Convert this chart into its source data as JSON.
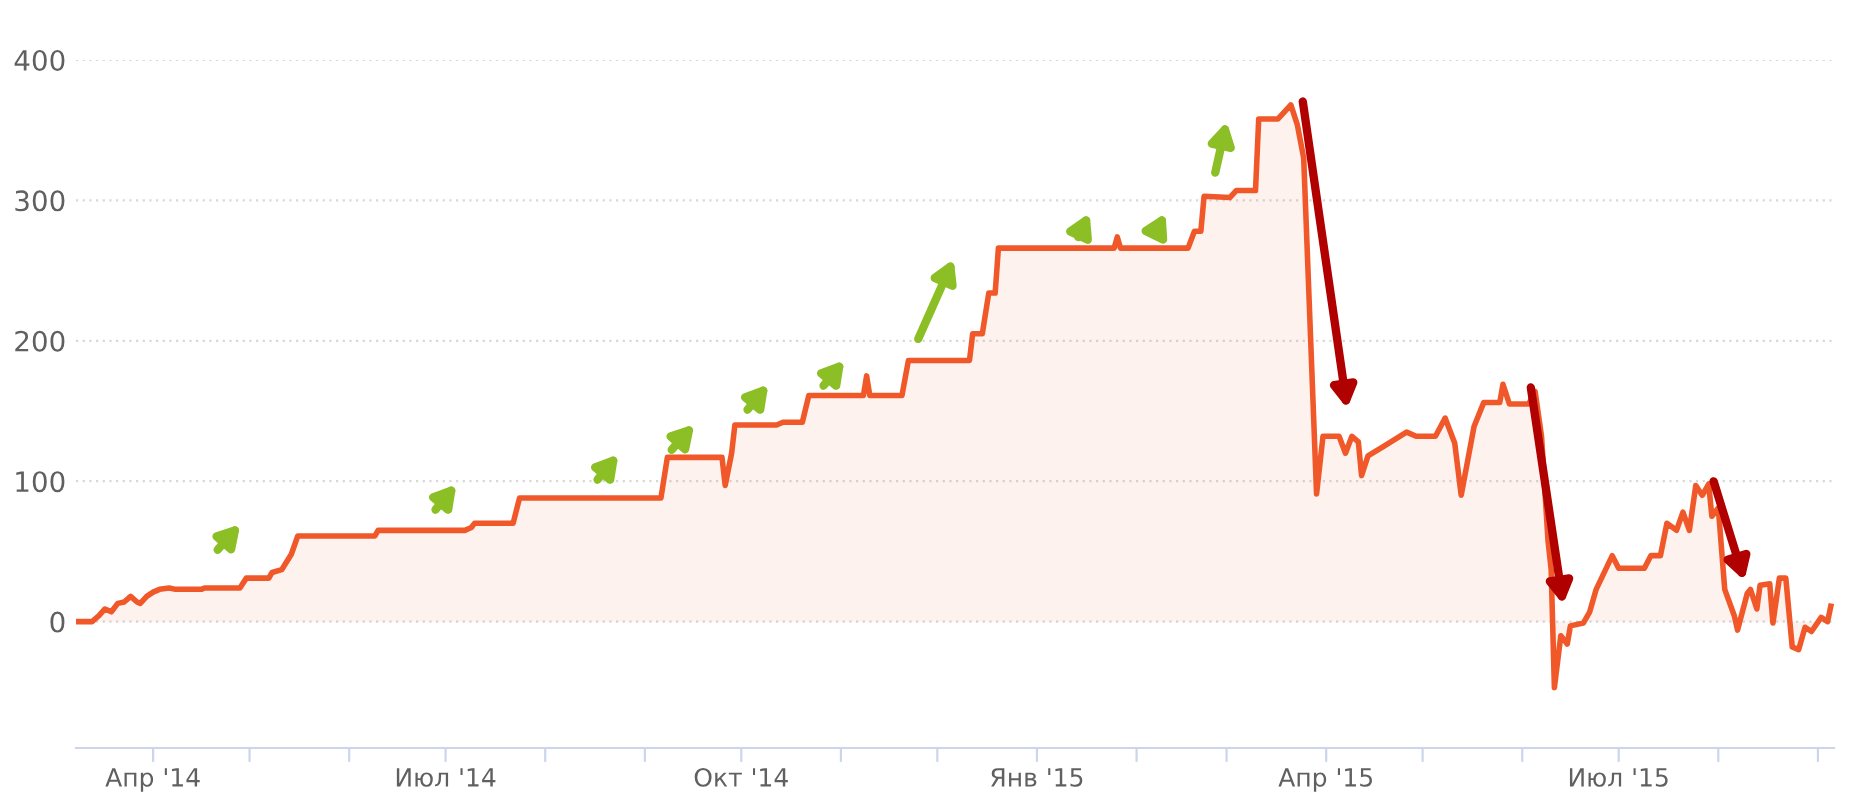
{
  "chart_data": {
    "type": "area",
    "x": [
      "2014-03-08",
      "2014-03-13",
      "2014-03-15",
      "2014-03-17",
      "2014-03-19",
      "2014-03-21",
      "2014-03-23",
      "2014-03-25",
      "2014-03-27",
      "2014-03-28",
      "2014-03-30",
      "2014-04-01",
      "2014-04-03",
      "2014-04-06",
      "2014-04-08",
      "2014-04-16",
      "2014-04-17",
      "2014-04-28",
      "2014-04-30",
      "2014-05-07",
      "2014-05-08",
      "2014-05-11",
      "2014-05-14",
      "2014-05-16",
      "2014-06-09",
      "2014-06-10",
      "2014-07-07",
      "2014-07-09",
      "2014-07-10",
      "2014-07-22",
      "2014-07-24",
      "2014-09-06",
      "2014-09-08",
      "2014-09-25",
      "2014-09-26",
      "2014-09-28",
      "2014-09-29",
      "2014-10-12",
      "2014-10-14",
      "2014-10-20",
      "2014-10-22",
      "2014-11-08",
      "2014-11-09",
      "2014-11-10",
      "2014-11-20",
      "2014-11-22",
      "2014-12-11",
      "2014-12-12",
      "2014-12-15",
      "2014-12-17",
      "2014-12-19",
      "2014-12-20",
      "2015-01-25",
      "2015-01-26",
      "2015-01-27",
      "2015-02-17",
      "2015-02-19",
      "2015-02-21",
      "2015-02-22",
      "2015-03-02",
      "2015-03-04",
      "2015-03-10",
      "2015-03-11",
      "2015-03-17",
      "2015-03-21",
      "2015-03-23",
      "2015-03-25",
      "2015-03-29",
      "2015-03-31",
      "2015-04-05",
      "2015-04-07",
      "2015-04-09",
      "2015-04-11",
      "2015-04-12",
      "2015-04-14",
      "2015-04-19",
      "2015-04-26",
      "2015-04-29",
      "2015-05-05",
      "2015-05-08",
      "2015-05-11",
      "2015-05-13",
      "2015-05-17",
      "2015-05-20",
      "2015-05-25",
      "2015-05-26",
      "2015-05-28",
      "2015-06-03",
      "2015-06-05",
      "2015-06-07",
      "2015-06-09",
      "2015-06-10",
      "2015-06-11",
      "2015-06-13",
      "2015-06-15",
      "2015-06-16",
      "2015-06-20",
      "2015-06-22",
      "2015-06-24",
      "2015-06-29",
      "2015-07-01",
      "2015-07-09",
      "2015-07-11",
      "2015-07-14",
      "2015-07-16",
      "2015-07-19",
      "2015-07-21",
      "2015-07-23",
      "2015-07-25",
      "2015-07-27",
      "2015-07-29",
      "2015-07-30",
      "2015-08-01",
      "2015-08-03",
      "2015-08-06",
      "2015-08-07",
      "2015-08-10",
      "2015-08-11",
      "2015-08-13",
      "2015-08-14",
      "2015-08-17",
      "2015-08-18",
      "2015-08-20",
      "2015-08-22",
      "2015-08-24",
      "2015-08-26",
      "2015-08-28",
      "2015-08-30",
      "2015-09-02",
      "2015-09-04",
      "2015-09-05"
    ],
    "series": [
      {
        "color": "#f0582a",
        "values": [
          0,
          0,
          4,
          9,
          7,
          13,
          14,
          18,
          14,
          13,
          18,
          21,
          23,
          24,
          23,
          23,
          24,
          24,
          31,
          31,
          35,
          37,
          48,
          61,
          61,
          65,
          65,
          67,
          70,
          70,
          88,
          88,
          117,
          117,
          97,
          120,
          140,
          140,
          142,
          142,
          161,
          161,
          175,
          161,
          161,
          186,
          186,
          205,
          205,
          234,
          234,
          266,
          266,
          274,
          266,
          266,
          278,
          278,
          303,
          302,
          307,
          307,
          358,
          358,
          368,
          354,
          330,
          91,
          132,
          132,
          120,
          132,
          128,
          104,
          118,
          125,
          135,
          132,
          132,
          145,
          127,
          90,
          139,
          156,
          156,
          169,
          155,
          155,
          164,
          132,
          58,
          37,
          -47,
          -10,
          -16,
          -3,
          -1,
          7,
          23,
          47,
          38,
          38,
          47,
          47,
          70,
          65,
          78,
          65,
          97,
          90,
          98,
          75,
          81,
          23,
          4,
          -6,
          20,
          23,
          9,
          26,
          27,
          -1,
          31,
          31,
          -18,
          -20,
          -4,
          -7,
          3,
          0,
          11
        ]
      }
    ],
    "xlim": [
      "2014-03-08",
      "2015-09-06"
    ],
    "xticks": [
      {
        "value": "2014-04-01",
        "label": "Апр '14"
      },
      {
        "value": "2014-05-01",
        "label": null
      },
      {
        "value": "2014-06-01",
        "label": null
      },
      {
        "value": "2014-07-01",
        "label": "Июл '14"
      },
      {
        "value": "2014-08-01",
        "label": null
      },
      {
        "value": "2014-09-01",
        "label": null
      },
      {
        "value": "2014-10-01",
        "label": "Окт '14"
      },
      {
        "value": "2014-11-01",
        "label": null
      },
      {
        "value": "2014-12-01",
        "label": null
      },
      {
        "value": "2015-01-01",
        "label": "Янв '15"
      },
      {
        "value": "2015-02-01",
        "label": null
      },
      {
        "value": "2015-03-01",
        "label": null
      },
      {
        "value": "2015-04-01",
        "label": "Апр '15"
      },
      {
        "value": "2015-05-01",
        "label": null
      },
      {
        "value": "2015-06-01",
        "label": null
      },
      {
        "value": "2015-07-01",
        "label": "Июл '15"
      },
      {
        "value": "2015-08-01",
        "label": null
      },
      {
        "value": "2015-09-01",
        "label": null
      }
    ],
    "ylim": [
      -90,
      400
    ],
    "yticks": [
      0,
      100,
      200,
      300,
      400
    ],
    "grid": "y"
  }
}
